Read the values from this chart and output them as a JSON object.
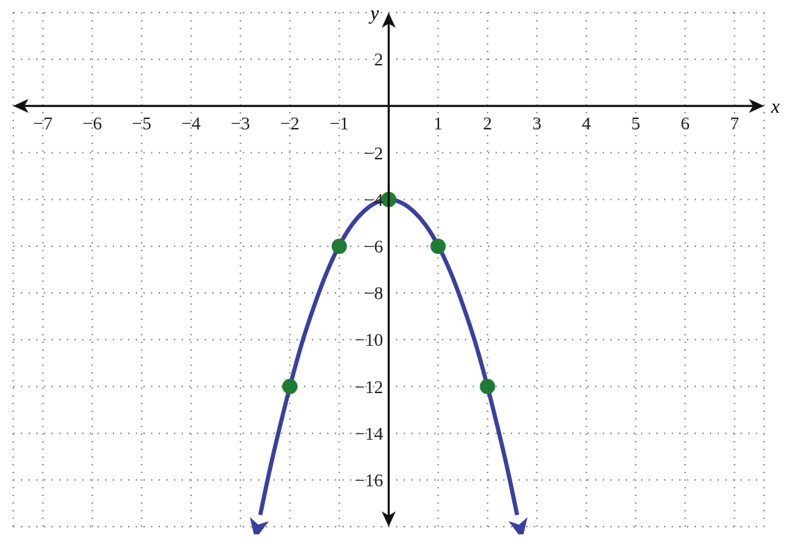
{
  "chart_data": {
    "type": "line",
    "xlabel": "x",
    "ylabel": "y",
    "xlim": [
      -7.6,
      7.6
    ],
    "ylim": [
      -18,
      4
    ],
    "xticks": [
      {
        "value": -7,
        "label": "−7"
      },
      {
        "value": -6,
        "label": "−6"
      },
      {
        "value": -5,
        "label": "−5"
      },
      {
        "value": -4,
        "label": "−4"
      },
      {
        "value": -3,
        "label": "−3"
      },
      {
        "value": -2,
        "label": "−2"
      },
      {
        "value": -1,
        "label": "−1"
      },
      {
        "value": 0,
        "label": null
      },
      1,
      2,
      3,
      4,
      5,
      6,
      7
    ],
    "yticks": [
      {
        "value": -18,
        "label": null
      },
      {
        "value": -16,
        "label": "−16"
      },
      {
        "value": -14,
        "label": "−14"
      },
      {
        "value": -12,
        "label": "−12"
      },
      {
        "value": -10,
        "label": "−10"
      },
      {
        "value": -8,
        "label": "−8"
      },
      {
        "value": -6,
        "label": "−6"
      },
      {
        "value": -4,
        "label": "−4"
      },
      {
        "value": -2,
        "label": "−2"
      },
      {
        "value": 0,
        "label": null
      },
      2,
      {
        "value": 4,
        "label": null
      }
    ],
    "grid": true,
    "series": [
      {
        "color": "#3a3fa0",
        "marker": "none",
        "x": [
          -2.6,
          -2.4,
          -2.2,
          -1.75,
          -1.5,
          -1.25,
          -0.75,
          -0.5,
          0,
          0.5,
          0.75,
          1.25,
          1.5,
          1.75,
          2.2,
          2.4,
          2.6
        ],
        "values": [
          -17.5,
          -15.5,
          -13.7,
          -10.1,
          -8.5,
          -7.1,
          -5.1,
          -4.5,
          -4,
          -4.5,
          -5.1,
          -7.1,
          -8.5,
          -10.1,
          -13.7,
          -15.5,
          -17.5
        ]
      },
      {
        "type": "scatter",
        "color": "#1e7b34",
        "marker": "circle",
        "x": [
          -2,
          -1,
          0,
          1,
          2
        ],
        "values": [
          -12,
          -6,
          -4,
          -6,
          -12
        ]
      }
    ]
  }
}
